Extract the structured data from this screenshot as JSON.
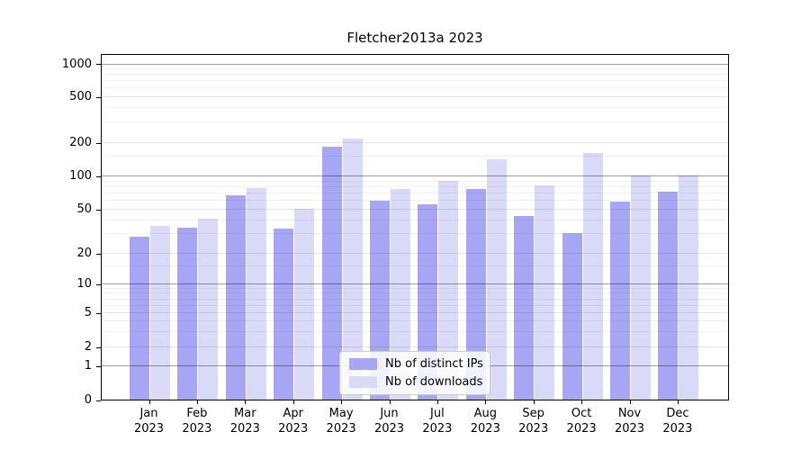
{
  "chart_data": {
    "type": "bar",
    "title": "Fletcher2013a 2023",
    "categories": [
      "Jan",
      "Feb",
      "Mar",
      "Apr",
      "May",
      "Jun",
      "Jul",
      "Aug",
      "Sep",
      "Oct",
      "Nov",
      "Dec"
    ],
    "category_year": "2023",
    "series": [
      {
        "name": "Nb of distinct IPs",
        "color": "#a6a6f5",
        "values": [
          28,
          34,
          66,
          33,
          183,
          59,
          55,
          75,
          43,
          30,
          58,
          72
        ]
      },
      {
        "name": "Nb of downloads",
        "color": "#d9d9f8",
        "values": [
          35,
          41,
          77,
          50,
          215,
          75,
          89,
          140,
          82,
          160,
          100,
          100
        ]
      }
    ],
    "y_ticks": [
      0,
      1,
      2,
      5,
      10,
      20,
      50,
      100,
      200,
      500,
      1000
    ],
    "ylim": [
      0,
      1250
    ],
    "yscale": "log-like (linear below 1)",
    "grid": "on",
    "legend_position": "bottom-center"
  }
}
